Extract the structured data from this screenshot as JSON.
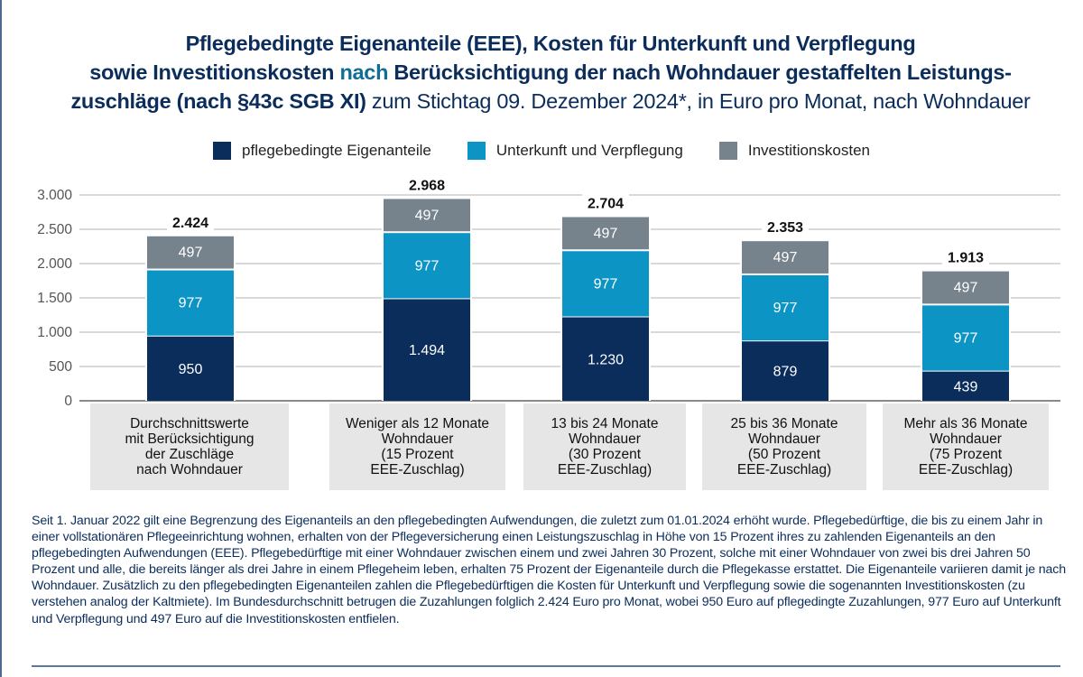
{
  "title": {
    "line1_bold": "Pflegebedingte Eigenanteile (EEE), Kosten für Unterkunft und Verpflegung",
    "line2_bold_a": "sowie Investitionskosten ",
    "line2_highlight": "nach",
    "line2_bold_b": " Berücksichtigung der nach Wohndauer gestaffelten Leistungs-",
    "line3_bold": "zuschläge (nach §43c SGB XI)",
    "line3_normal": " zum Stichtag 09. Dezember 2024*, in Euro pro Monat, nach Wohndauer"
  },
  "colors": {
    "title": "#0b2d5c",
    "highlight": "#0f6d98",
    "pflege": "#0b2d5c",
    "unterkunft": "#0c94c4",
    "invest": "#76838d",
    "category_bg": "#e6e6e6",
    "gridline": "#b3b3b3"
  },
  "chart_data": {
    "type": "bar",
    "stacked": true,
    "title": "Pflegebedingte Eigenanteile (EEE), Kosten für Unterkunft und Verpflegung sowie Investitionskosten nach Berücksichtigung der nach Wohndauer gestaffelten Leistungszuschläge (nach §43c SGB XI) zum Stichtag 09. Dezember 2024*, in Euro pro Monat, nach Wohndauer",
    "xlabel": "",
    "ylabel": "",
    "ylim": [
      0,
      3000
    ],
    "yticks": [
      0,
      500,
      1000,
      1500,
      2000,
      2500,
      3000
    ],
    "ytick_labels": [
      "0",
      "500",
      "1.000",
      "1.500",
      "2.000",
      "2.500",
      "3.000"
    ],
    "grid": true,
    "legend_position": "top-center",
    "categories": [
      [
        "Durchschnittswerte",
        "mit Berücksichtigung",
        "der Zuschläge",
        "nach Wohndauer"
      ],
      [
        "Weniger als 12 Monate",
        "Wohndauer",
        "(15 Prozent",
        "EEE-Zuschlag)"
      ],
      [
        "13 bis 24 Monate",
        "Wohndauer",
        "(30 Prozent",
        "EEE-Zuschlag)"
      ],
      [
        "25 bis 36 Monate",
        "Wohndauer",
        "(50 Prozent",
        "EEE-Zuschlag)"
      ],
      [
        "Mehr als 36 Monate",
        "Wohndauer",
        "(75 Prozent",
        "EEE-Zuschlag)"
      ]
    ],
    "series": [
      {
        "name": "pflegebedingte Eigenanteile",
        "values": [
          950,
          1494,
          1230,
          879,
          439
        ],
        "labels": [
          "950",
          "1.494",
          "1.230",
          "879",
          "439"
        ]
      },
      {
        "name": "Unterkunft und Verpflegung",
        "values": [
          977,
          977,
          977,
          977,
          977
        ],
        "labels": [
          "977",
          "977",
          "977",
          "977",
          "977"
        ]
      },
      {
        "name": "Investitionskosten",
        "values": [
          497,
          497,
          497,
          497,
          497
        ],
        "labels": [
          "497",
          "497",
          "497",
          "497",
          "497"
        ]
      }
    ],
    "totals": [
      2424,
      2968,
      2704,
      2353,
      1913
    ],
    "total_labels": [
      "2.424",
      "2.968",
      "2.704",
      "2.353",
      "1.913"
    ]
  },
  "legend": [
    {
      "label": "pflegebedingte Eigenanteile"
    },
    {
      "label": "Unterkunft und Verpflegung"
    },
    {
      "label": "Investitionskosten"
    }
  ],
  "note": "Seit 1. Januar 2022 gilt eine Begrenzung des Eigenanteils an den pflegebedingten Aufwendungen, die zuletzt zum 01.01.2024 erhöht wurde. Pflegebedürftige, die bis zu einem Jahr in einer vollstationären Pflegeeinrichtung wohnen, erhalten von der Pflegeversicherung einen Leistungszuschlag in Höhe von 15 Prozent ihres zu zahlenden Eigenanteils an den pflegebedingten Aufwendungen (EEE). Pflegebedürftige mit einer Wohndauer zwischen einem und zwei Jahren 30 Prozent, solche mit einer Wohndauer von zwei bis drei Jahren 50 Prozent und alle, die bereits länger als drei Jahre in einem Pflegeheim leben, erhalten 75 Prozent der Eigenanteile durch die Pflegekasse erstattet. Die Eigenanteile variieren damit je nach Wohndauer. Zusätzlich zu den pflegebedingten Eigenanteilen zahlen die Pflegebedürftigen die Kosten für Unterkunft und Verpflegung sowie die sogenannten Investitionskosten (zu verstehen analog der Kaltmiete). Im Bundesdurchschnitt betrugen die Zuzahlungen folglich 2.424 Euro pro Monat, wobei 950 Euro auf pflegedingte Zuzahlungen, 977 Euro auf Unterkunft und Verpflegung und 497 Euro auf die Investitionskosten entfielen."
}
